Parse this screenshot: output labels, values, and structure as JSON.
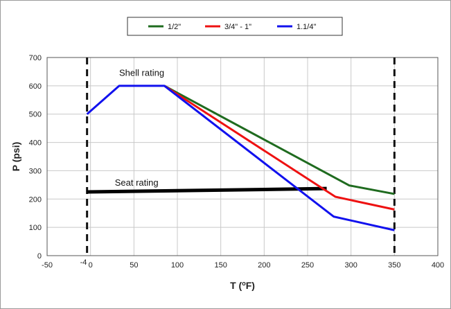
{
  "chart_data": {
    "type": "line",
    "xlabel_prefix": "T (",
    "xlabel_sup": "o",
    "xlabel_suffix": "F)",
    "ylabel": "P (psi)",
    "xlim": [
      -50,
      400
    ],
    "ylim": [
      0,
      700
    ],
    "xticks": [
      -50,
      0,
      50,
      100,
      150,
      200,
      250,
      300,
      350,
      400
    ],
    "yticks": [
      0,
      100,
      200,
      300,
      400,
      500,
      600,
      700
    ],
    "grid": true,
    "legend_position": "top-center",
    "series": [
      {
        "name": "1/2\"",
        "color": "#1f6b1f",
        "points": [
          [
            85,
            600
          ],
          [
            298,
            248
          ],
          [
            350,
            218
          ]
        ]
      },
      {
        "name": "3/4\" - 1\"",
        "color": "#ee1111",
        "points": [
          [
            85,
            600
          ],
          [
            282,
            208
          ],
          [
            350,
            163
          ]
        ]
      },
      {
        "name": "1.1/4\"",
        "color": "#1111ee",
        "points": [
          [
            -4,
            500
          ],
          [
            33,
            600
          ],
          [
            85,
            600
          ],
          [
            280,
            138
          ],
          [
            350,
            90
          ]
        ]
      }
    ],
    "seat_rating": {
      "color": "#000000",
      "points": [
        [
          -4,
          225
        ],
        [
          272,
          237
        ]
      ]
    },
    "dashed_limits": [
      -4,
      350
    ],
    "annotations": [
      {
        "text": "Shell rating",
        "x": 33,
        "y": 635
      },
      {
        "text": "Seat rating",
        "x": 28,
        "y": 247
      },
      {
        "text": "-4",
        "x": -4,
        "y": 0
      }
    ]
  }
}
